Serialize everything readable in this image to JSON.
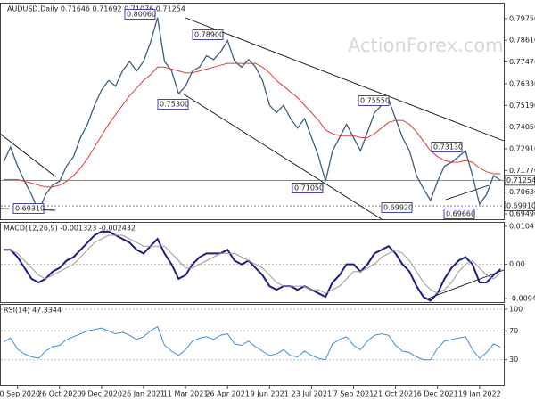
{
  "chart_data": [
    {
      "type": "line",
      "title": "AUDUSD,Daily  0.71646 0.71692 0.71076 0.71254",
      "watermark": "ActionForex.com",
      "ylim": [
        0.6921,
        0.8054
      ],
      "yticks": [
        {
          "value": 0.7975,
          "label": "0.79750"
        },
        {
          "value": 0.7861,
          "label": "0.78610"
        },
        {
          "value": 0.7747,
          "label": "0.77470"
        },
        {
          "value": 0.7633,
          "label": "0.76330"
        },
        {
          "value": 0.7519,
          "label": "0.75190"
        },
        {
          "value": 0.7405,
          "label": "0.74050"
        },
        {
          "value": 0.7291,
          "label": "0.72910"
        },
        {
          "value": 0.7177,
          "label": "0.71770"
        },
        {
          "value": 0.7063,
          "label": "0.70630"
        },
        {
          "value": 0.6949,
          "label": "0.69490"
        }
      ],
      "price_markers": [
        {
          "value": 0.71254,
          "label": "0.71254"
        },
        {
          "value": 0.6991,
          "label": "0.69910"
        }
      ],
      "annotations": [
        "0.80060",
        "0.78900",
        "0.75300",
        "0.75550",
        "0.73130",
        "0.71050",
        "0.69920",
        "0.69660",
        "0.69310"
      ],
      "series": [
        {
          "name": "AUDUSD",
          "color": "#3d5f7d",
          "values": [
            0.722,
            0.73,
            0.72,
            0.712,
            0.705,
            0.696,
            0.705,
            0.71,
            0.712,
            0.72,
            0.725,
            0.735,
            0.742,
            0.752,
            0.76,
            0.765,
            0.762,
            0.77,
            0.775,
            0.77,
            0.775,
            0.785,
            0.798,
            0.775,
            0.77,
            0.758,
            0.762,
            0.77,
            0.772,
            0.778,
            0.776,
            0.78,
            0.786,
            0.775,
            0.772,
            0.776,
            0.772,
            0.765,
            0.752,
            0.748,
            0.752,
            0.745,
            0.74,
            0.745,
            0.735,
            0.725,
            0.712,
            0.728,
            0.735,
            0.742,
            0.735,
            0.728,
            0.738,
            0.748,
            0.752,
            0.755,
            0.745,
            0.735,
            0.728,
            0.715,
            0.708,
            0.702,
            0.712,
            0.72,
            0.722,
            0.725,
            0.728,
            0.715,
            0.7,
            0.705,
            0.715,
            0.7125
          ]
        },
        {
          "name": "MA",
          "color": "#e03a3a",
          "values": [
            0.713,
            0.713,
            0.713,
            0.712,
            0.711,
            0.71,
            0.709,
            0.709,
            0.71,
            0.712,
            0.715,
            0.719,
            0.724,
            0.73,
            0.736,
            0.742,
            0.747,
            0.752,
            0.757,
            0.761,
            0.765,
            0.768,
            0.772,
            0.772,
            0.771,
            0.77,
            0.769,
            0.769,
            0.77,
            0.771,
            0.772,
            0.773,
            0.774,
            0.774,
            0.774,
            0.774,
            0.774,
            0.772,
            0.769,
            0.765,
            0.762,
            0.759,
            0.756,
            0.752,
            0.748,
            0.744,
            0.739,
            0.737,
            0.736,
            0.736,
            0.736,
            0.735,
            0.735,
            0.737,
            0.74,
            0.743,
            0.744,
            0.744,
            0.742,
            0.738,
            0.733,
            0.728,
            0.725,
            0.723,
            0.722,
            0.722,
            0.723,
            0.722,
            0.719,
            0.717,
            0.716,
            0.716
          ]
        }
      ]
    },
    {
      "type": "line",
      "title": "MACD(12,26,9) -0.001323 -0.002432",
      "ylim": [
        -0.0104,
        0.01144
      ],
      "yticks": [
        0.010472,
        {
          "value": 0,
          "label": "0.00"
        },
        -0.009426
      ],
      "series": [
        {
          "name": "MACD",
          "color": "#1c1c8a",
          "values": [
            0.004,
            0.004,
            0.002,
            -0.001,
            -0.004,
            -0.005,
            -0.004,
            -0.002,
            -0.001,
            0.001,
            0.002,
            0.004,
            0.006,
            0.008,
            0.009,
            0.009,
            0.008,
            0.007,
            0.006,
            0.004,
            0.003,
            0.005,
            0.007,
            0.003,
            0.0,
            -0.004,
            -0.003,
            0.0,
            0.002,
            0.003,
            0.003,
            0.003,
            0.004,
            0.001,
            0.0,
            0.001,
            -0.001,
            -0.003,
            -0.006,
            -0.007,
            -0.006,
            -0.006,
            -0.007,
            -0.006,
            -0.007,
            -0.008,
            -0.009,
            -0.005,
            -0.003,
            0.0,
            0.0,
            -0.002,
            0.0,
            0.003,
            0.004,
            0.005,
            0.003,
            0.0,
            -0.002,
            -0.006,
            -0.009,
            -0.01,
            -0.008,
            -0.004,
            -0.001,
            0.001,
            0.002,
            0.0,
            -0.005,
            -0.005,
            -0.003,
            -0.001323
          ]
        },
        {
          "name": "Signal",
          "color": "#9a9a9a",
          "values": [
            0.004,
            0.004,
            0.003,
            0.001,
            -0.001,
            -0.003,
            -0.004,
            -0.003,
            -0.002,
            -0.001,
            0.0,
            0.002,
            0.004,
            0.006,
            0.007,
            0.008,
            0.008,
            0.008,
            0.007,
            0.006,
            0.005,
            0.005,
            0.005,
            0.005,
            0.003,
            0.001,
            -0.001,
            -0.001,
            0.0,
            0.001,
            0.002,
            0.003,
            0.003,
            0.003,
            0.002,
            0.001,
            0.0,
            -0.001,
            -0.003,
            -0.005,
            -0.006,
            -0.006,
            -0.006,
            -0.006,
            -0.007,
            -0.007,
            -0.008,
            -0.007,
            -0.006,
            -0.004,
            -0.002,
            -0.002,
            -0.001,
            0.0,
            0.002,
            0.003,
            0.004,
            0.003,
            0.001,
            -0.002,
            -0.005,
            -0.007,
            -0.008,
            -0.007,
            -0.005,
            -0.002,
            0.0,
            0.001,
            -0.001,
            -0.003,
            -0.004,
            -0.002432
          ]
        }
      ]
    },
    {
      "type": "line",
      "title": "RSI(14) 47.3344",
      "ylim": [
        -4.9,
        106.2
      ],
      "yticks": [
        100,
        70,
        30
      ],
      "categories": [
        null,
        null,
        "10 Sep 2020",
        null,
        null,
        null,
        null,
        null,
        "26 Oct 2020",
        null,
        null,
        null,
        null,
        null,
        "9 Dec 2020",
        null,
        null,
        null,
        null,
        null,
        "26 Jan 2021",
        null,
        null,
        null,
        null,
        null,
        "11 Mar 2021",
        null,
        null,
        null,
        null,
        null,
        "26 Apr 2021",
        null,
        null,
        null,
        null,
        null,
        "9 Jun 2021",
        null,
        null,
        null,
        null,
        null,
        "23 Jul 2021",
        null,
        null,
        null,
        null,
        null,
        "7 Sep 2021",
        null,
        null,
        null,
        null,
        null,
        "21 Oct 2021",
        null,
        null,
        null,
        null,
        null,
        "6 Dec 2021",
        null,
        null,
        null,
        null,
        null,
        "19 Jan 2022",
        null,
        null,
        null
      ],
      "series": [
        {
          "name": "RSI",
          "color": "#3a8ee6",
          "values": [
            55,
            60,
            45,
            38,
            34,
            32,
            42,
            48,
            50,
            58,
            62,
            66,
            70,
            72,
            74,
            70,
            66,
            68,
            64,
            58,
            62,
            70,
            76,
            50,
            42,
            36,
            44,
            56,
            60,
            62,
            58,
            64,
            66,
            52,
            50,
            56,
            48,
            42,
            36,
            38,
            44,
            36,
            34,
            42,
            36,
            32,
            30,
            52,
            58,
            62,
            50,
            44,
            56,
            64,
            66,
            64,
            50,
            42,
            40,
            34,
            30,
            30,
            46,
            56,
            58,
            60,
            62,
            44,
            32,
            40,
            52,
            47.3344
          ]
        }
      ]
    }
  ]
}
